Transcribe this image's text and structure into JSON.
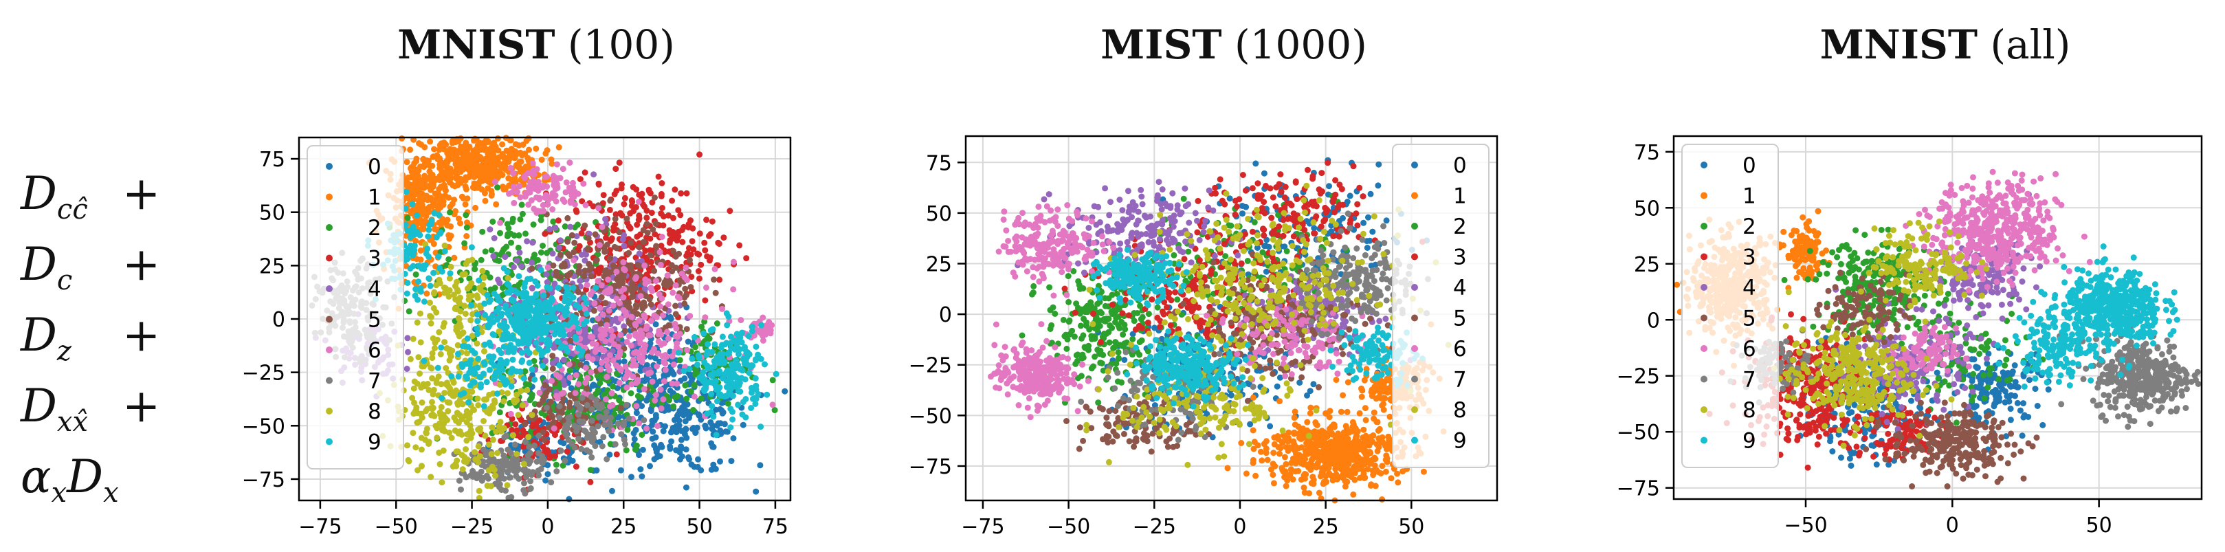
{
  "row_label": {
    "lines": [
      {
        "symbol": "D",
        "subscript": "cĉ",
        "suffix": "+"
      },
      {
        "symbol": "D",
        "subscript": "c",
        "suffix": "+"
      },
      {
        "symbol": "D",
        "subscript": "z",
        "suffix": "+"
      },
      {
        "symbol": "D",
        "subscript": "xx̂",
        "suffix": "+"
      },
      {
        "prefix": "α",
        "prefix_subscript": "x",
        "symbol": "D",
        "subscript": "x",
        "suffix": ""
      }
    ]
  },
  "palette": [
    "#1f77b4",
    "#ff7f0e",
    "#2ca02c",
    "#d62728",
    "#9467bd",
    "#8c564b",
    "#e377c2",
    "#7f7f7f",
    "#bcbd22",
    "#17becf"
  ],
  "chart_data": [
    {
      "type": "scatter",
      "title_bold": "MNIST",
      "title_rest": " (100)",
      "xlim": [
        -82,
        80
      ],
      "ylim": [
        -85,
        85
      ],
      "xticks": [
        -75,
        -50,
        -25,
        0,
        25,
        50,
        75
      ],
      "yticks": [
        -75,
        -50,
        -25,
        0,
        25,
        50,
        75
      ],
      "grid": true,
      "legend_position": "top-left",
      "legend": [
        "0",
        "1",
        "2",
        "3",
        "4",
        "5",
        "6",
        "7",
        "8",
        "9"
      ],
      "clusters": [
        {
          "label": "0",
          "points": [
            [
              20,
              -25,
              18,
              25,
              300
            ],
            [
              45,
              -45,
              15,
              20,
              250
            ],
            [
              -5,
              -60,
              10,
              10,
              80
            ]
          ]
        },
        {
          "label": "1",
          "points": [
            [
              -22,
              72,
              14,
              10,
              450
            ],
            [
              -42,
              50,
              8,
              22,
              300
            ]
          ]
        },
        {
          "label": "2",
          "points": [
            [
              -10,
              25,
              20,
              20,
              200
            ],
            [
              10,
              -35,
              20,
              20,
              200
            ],
            [
              55,
              -20,
              10,
              15,
              80
            ]
          ]
        },
        {
          "label": "3",
          "points": [
            [
              30,
              35,
              18,
              22,
              300
            ],
            [
              -5,
              -55,
              12,
              12,
              80
            ]
          ]
        },
        {
          "label": "4",
          "points": [
            [
              10,
              5,
              20,
              25,
              300
            ],
            [
              -60,
              -15,
              8,
              10,
              60
            ]
          ]
        },
        {
          "label": "5",
          "points": [
            [
              25,
              15,
              18,
              22,
              250
            ],
            [
              5,
              -45,
              12,
              12,
              80
            ]
          ]
        },
        {
          "label": "6",
          "points": [
            [
              25,
              -10,
              22,
              25,
              300
            ],
            [
              0,
              60,
              10,
              8,
              100
            ],
            [
              70,
              -5,
              4,
              4,
              40
            ]
          ]
        },
        {
          "label": "7",
          "points": [
            [
              -15,
              -70,
              10,
              8,
              150
            ],
            [
              -65,
              5,
              8,
              15,
              150
            ],
            [
              15,
              -50,
              10,
              10,
              80
            ]
          ]
        },
        {
          "label": "8",
          "points": [
            [
              -30,
              -40,
              15,
              25,
              300
            ],
            [
              -30,
              5,
              10,
              15,
              100
            ]
          ]
        },
        {
          "label": "9",
          "points": [
            [
              -5,
              0,
              12,
              12,
              350
            ],
            [
              60,
              -25,
              8,
              15,
              200
            ],
            [
              -45,
              30,
              8,
              15,
              100
            ],
            [
              -20,
              -25,
              10,
              10,
              80
            ]
          ]
        }
      ]
    },
    {
      "type": "scatter",
      "title_bold": "MIST",
      "title_rest": " (1000)",
      "xlim": [
        -80,
        75
      ],
      "ylim": [
        -92,
        88
      ],
      "xticks": [
        -75,
        -50,
        -25,
        0,
        25,
        50
      ],
      "yticks": [
        -75,
        -50,
        -25,
        0,
        25,
        50,
        75
      ],
      "grid": true,
      "legend_position": "top-right",
      "legend": [
        "0",
        "1",
        "2",
        "3",
        "4",
        "5",
        "6",
        "7",
        "8",
        "9"
      ],
      "clusters": [
        {
          "label": "0",
          "points": [
            [
              -10,
              -30,
              20,
              20,
              200
            ],
            [
              20,
              40,
              20,
              20,
              150
            ]
          ]
        },
        {
          "label": "1",
          "points": [
            [
              27,
              -68,
              14,
              12,
              550
            ],
            [
              45,
              -35,
              8,
              10,
              150
            ]
          ]
        },
        {
          "label": "2",
          "points": [
            [
              -40,
              -5,
              12,
              20,
              250
            ],
            [
              0,
              25,
              20,
              20,
              150
            ]
          ]
        },
        {
          "label": "3",
          "points": [
            [
              -10,
              10,
              20,
              20,
              200
            ],
            [
              15,
              50,
              18,
              15,
              150
            ]
          ]
        },
        {
          "label": "4",
          "points": [
            [
              -30,
              40,
              15,
              15,
              200
            ],
            [
              20,
              0,
              15,
              15,
              150
            ]
          ]
        },
        {
          "label": "5",
          "points": [
            [
              10,
              -5,
              18,
              20,
              200
            ],
            [
              -30,
              -55,
              12,
              10,
              100
            ]
          ]
        },
        {
          "label": "6",
          "points": [
            [
              -60,
              -30,
              8,
              10,
              250
            ],
            [
              -55,
              35,
              10,
              12,
              200
            ],
            [
              15,
              -10,
              12,
              15,
              120
            ]
          ]
        },
        {
          "label": "7",
          "points": [
            [
              35,
              15,
              12,
              15,
              200
            ],
            [
              -20,
              -40,
              15,
              15,
              120
            ]
          ]
        },
        {
          "label": "8",
          "points": [
            [
              5,
              15,
              25,
              25,
              300
            ],
            [
              -10,
              -45,
              18,
              15,
              150
            ]
          ]
        },
        {
          "label": "9",
          "points": [
            [
              -30,
              18,
              8,
              8,
              200
            ],
            [
              -15,
              -25,
              10,
              10,
              250
            ],
            [
              40,
              -20,
              8,
              10,
              100
            ]
          ]
        }
      ]
    },
    {
      "type": "scatter",
      "title_bold": "MNIST",
      "title_rest": " (all)",
      "xlim": [
        -95,
        85
      ],
      "ylim": [
        -80,
        82
      ],
      "xticks": [
        -50,
        0,
        50
      ],
      "yticks": [
        -75,
        -50,
        -25,
        0,
        25,
        50,
        75
      ],
      "grid": true,
      "legend_position": "top-left",
      "legend": [
        "0",
        "1",
        "2",
        "3",
        "4",
        "5",
        "6",
        "7",
        "8",
        "9"
      ],
      "clusters": [
        {
          "label": "0",
          "points": [
            [
              -30,
              -40,
              15,
              15,
              200
            ],
            [
              15,
              -30,
              12,
              12,
              150
            ]
          ]
        },
        {
          "label": "1",
          "points": [
            [
              -75,
              15,
              10,
              15,
              400
            ],
            [
              -50,
              30,
              5,
              8,
              100
            ]
          ]
        },
        {
          "label": "2",
          "points": [
            [
              -25,
              15,
              15,
              15,
              250
            ],
            [
              5,
              -15,
              15,
              15,
              100
            ]
          ]
        },
        {
          "label": "3",
          "points": [
            [
              -50,
              -30,
              15,
              18,
              300
            ],
            [
              -20,
              -50,
              12,
              10,
              100
            ]
          ]
        },
        {
          "label": "4",
          "points": [
            [
              -15,
              -20,
              15,
              15,
              200
            ],
            [
              10,
              20,
              12,
              12,
              150
            ]
          ]
        },
        {
          "label": "5",
          "points": [
            [
              0,
              -55,
              15,
              10,
              250
            ],
            [
              -30,
              5,
              10,
              10,
              100
            ]
          ]
        },
        {
          "label": "6",
          "points": [
            [
              15,
              40,
              15,
              15,
              450
            ],
            [
              -10,
              -15,
              8,
              8,
              100
            ]
          ]
        },
        {
          "label": "7",
          "points": [
            [
              65,
              -25,
              12,
              12,
              350
            ],
            [
              -60,
              -20,
              8,
              8,
              80
            ]
          ]
        },
        {
          "label": "8",
          "points": [
            [
              -35,
              -25,
              15,
              15,
              300
            ],
            [
              -10,
              25,
              12,
              12,
              150
            ]
          ]
        },
        {
          "label": "9",
          "points": [
            [
              55,
              5,
              12,
              12,
              450
            ],
            [
              35,
              -10,
              10,
              12,
              150
            ]
          ]
        }
      ]
    }
  ]
}
